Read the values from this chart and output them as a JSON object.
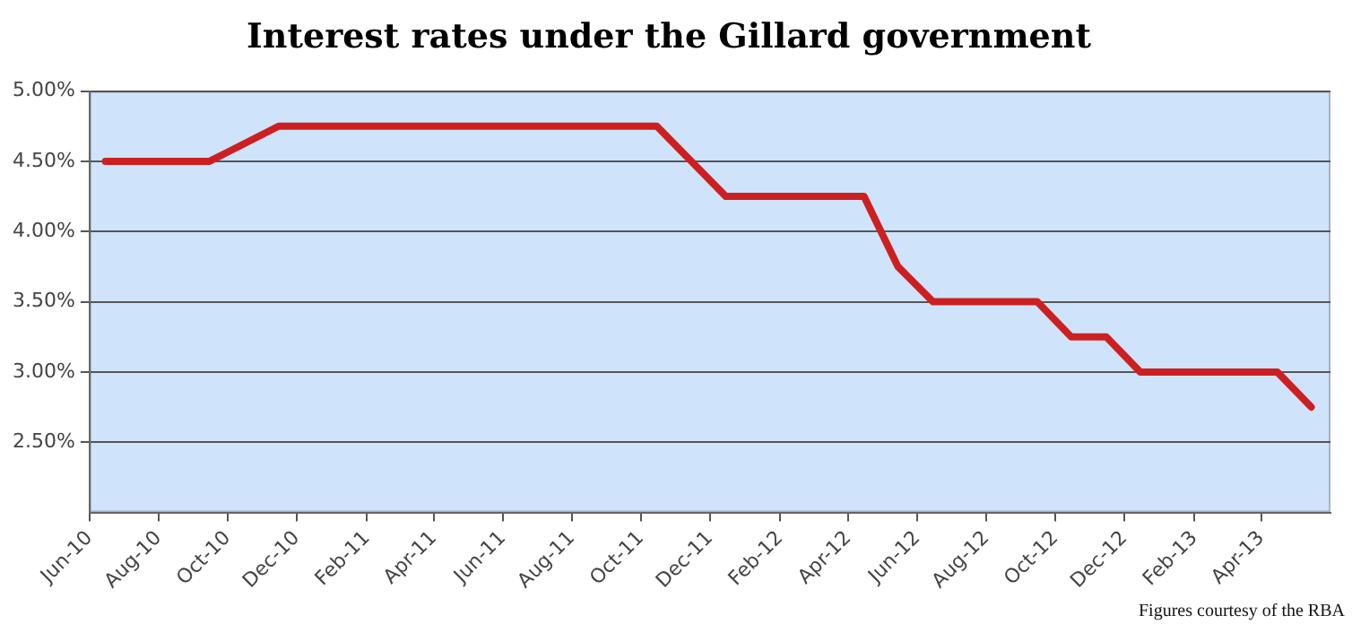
{
  "chart_data": {
    "type": "line",
    "title": "Interest rates under the Gillard government",
    "x": [
      "2010-06-15",
      "2010-09-15",
      "2010-11-15",
      "2011-10-15",
      "2011-12-15",
      "2012-04-15",
      "2012-05-15",
      "2012-06-15",
      "2012-09-15",
      "2012-10-15",
      "2012-11-15",
      "2012-12-15",
      "2013-04-15",
      "2013-05-15"
    ],
    "series": [
      {
        "color": "#cc2020",
        "values": [
          4.5,
          4.5,
          4.75,
          4.75,
          4.25,
          4.25,
          3.75,
          3.5,
          3.5,
          3.25,
          3.25,
          3.0,
          3.0,
          2.75
        ]
      }
    ],
    "xlim": [
      "2010-06-01",
      "2013-06-01"
    ],
    "xticks": [
      {
        "value": "2010-06-01",
        "label": "Jun-10"
      },
      {
        "value": "2010-08-01",
        "label": "Aug-10"
      },
      {
        "value": "2010-10-01",
        "label": "Oct-10"
      },
      {
        "value": "2010-12-01",
        "label": "Dec-10"
      },
      {
        "value": "2011-02-01",
        "label": "Feb-11"
      },
      {
        "value": "2011-04-01",
        "label": "Apr-11"
      },
      {
        "value": "2011-06-01",
        "label": "Jun-11"
      },
      {
        "value": "2011-08-01",
        "label": "Aug-11"
      },
      {
        "value": "2011-10-01",
        "label": "Oct-11"
      },
      {
        "value": "2011-12-01",
        "label": "Dec-11"
      },
      {
        "value": "2012-02-01",
        "label": "Feb-12"
      },
      {
        "value": "2012-04-01",
        "label": "Apr-12"
      },
      {
        "value": "2012-06-01",
        "label": "Jun-12"
      },
      {
        "value": "2012-08-01",
        "label": "Aug-12"
      },
      {
        "value": "2012-10-01",
        "label": "Oct-12"
      },
      {
        "value": "2012-12-01",
        "label": "Dec-12"
      },
      {
        "value": "2013-02-01",
        "label": "Feb-13"
      },
      {
        "value": "2013-04-01",
        "label": "Apr-13"
      }
    ],
    "ylim": [
      2,
      5
    ],
    "yticks": [
      {
        "value": 2.5,
        "label": "2.50%"
      },
      {
        "value": 3,
        "label": "3.00%"
      },
      {
        "value": 3.5,
        "label": "3.50%"
      },
      {
        "value": 4,
        "label": "4.00%"
      },
      {
        "value": 4.5,
        "label": "4.50%"
      },
      {
        "value": 5,
        "label": "5.00%"
      }
    ],
    "grid": "y",
    "legend": false,
    "marker": "none",
    "line_style": "solid",
    "annotations": [
      "Figures courtesy of the RBA"
    ]
  }
}
